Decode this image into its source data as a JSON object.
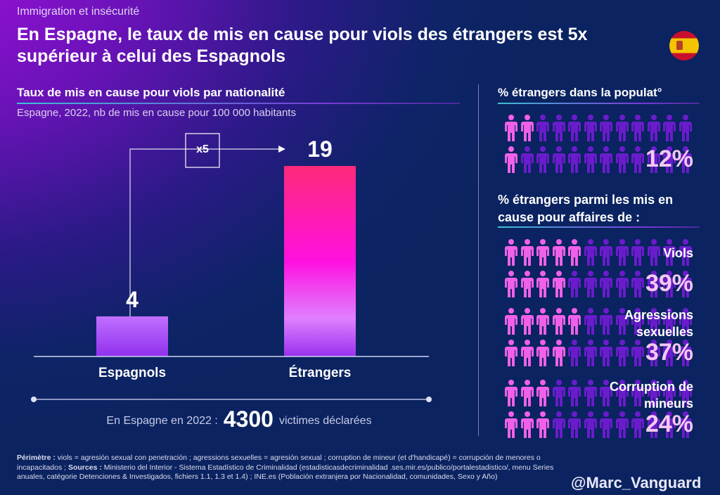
{
  "header": {
    "kicker": "Immigration et insécurité",
    "title": "En Espagne, le taux de mis en cause pour viols des étrangers est 5x supérieur à celui des Espagnols",
    "flag": "spain-flag"
  },
  "chart_data": {
    "type": "bar",
    "title": "Taux de mis en cause pour viols par nationalité",
    "subtitle": "Espagne, 2022, nb de mis en cause pour 100 000 habitants",
    "categories": [
      "Espagnols",
      "Étrangers"
    ],
    "values": [
      4,
      19
    ],
    "value_labels": [
      "4",
      "19"
    ],
    "annotation": "x5",
    "ylim": [
      0,
      20
    ],
    "grid": false,
    "colors": [
      "#a040f0",
      "#ff2a80"
    ]
  },
  "total": {
    "prefix": "En Espagne en 2022 :",
    "value": "4300",
    "suffix": "victimes déclarées"
  },
  "right": {
    "pop_title": "% étrangers dans la populat°",
    "pop_pct": "12%",
    "pop_highlight": 3,
    "crimes_title": "% étrangers parmi les mis en cause pour affaires de :",
    "groups": [
      {
        "label": "Viols",
        "pct": "39%",
        "highlight": 9
      },
      {
        "label": "Agressions sexuelles",
        "pct": "37%",
        "highlight": 9
      },
      {
        "label": "Corruption de mineurs",
        "pct": "24%",
        "highlight": 6
      }
    ],
    "icon_total": 24,
    "colors": {
      "highlight": "#f060e8",
      "base": "#6a1ccc"
    }
  },
  "footer": {
    "perimetre_label": "Périmètre :",
    "perimetre": "viols = agresión sexual con penetración ; agressions sexuelles = agresión sexual ; corruption de mineur (et d'handicapé) = corrupción de menores o incapacitados ;",
    "sources_label": "Sources :",
    "sources": "Ministerio del Interior - Sistema Estadístico de Criminalidad (estadisticasdecriminalidad .ses.mir.es/publico/portalestadistico/, menu Series anuales, catégorie Detenciones & Investigados, fichiers 1.1, 1.3 et 1.4) ; INE.es (Población extranjera por Nacionalidad, comunidades, Sexo y Año)"
  },
  "handle": "@Marc_Vanguard"
}
